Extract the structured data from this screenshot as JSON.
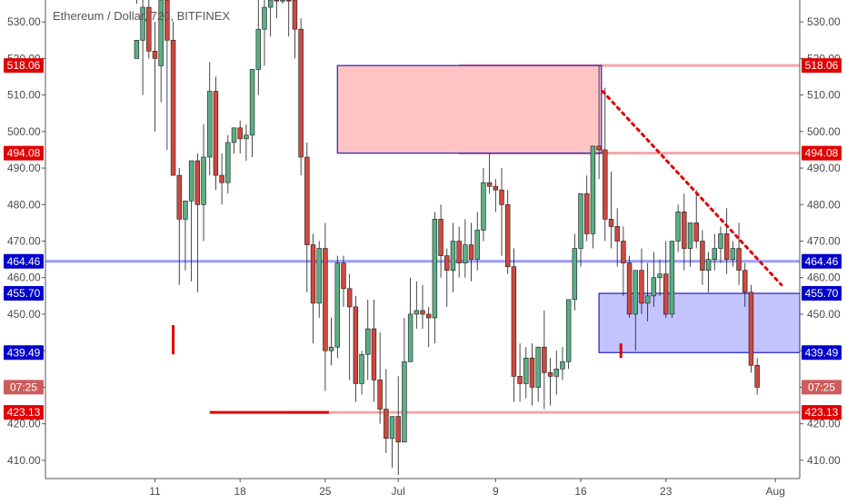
{
  "chart_data": {
    "type": "candlestick",
    "title": "Ethereum / Dollar, 720, BITFINEX",
    "y_ticks": [
      410,
      420,
      430,
      440,
      450,
      460,
      470,
      480,
      490,
      500,
      510,
      520,
      530
    ],
    "y_tick_labels": [
      "410.00",
      "420.00",
      "430.00",
      "440.00",
      "450.00",
      "460.00",
      "470.00",
      "480.00",
      "490.00",
      "500.00",
      "510.00",
      "520.00",
      "530.00"
    ],
    "ylim": [
      405,
      536
    ],
    "x_tick_labels": [
      "11",
      "18",
      "25",
      "Jul",
      "9",
      "16",
      "23",
      "Aug"
    ],
    "x_tick_days": [
      11,
      18,
      25,
      31,
      39,
      46,
      53,
      62
    ],
    "x_range_days": [
      2,
      64
    ],
    "candles": [
      [
        9.5,
        520,
        535,
        525,
        536
      ],
      [
        10,
        525,
        540,
        534,
        510
      ],
      [
        10.5,
        534,
        545,
        522,
        520
      ],
      [
        11,
        522,
        530,
        520,
        500
      ],
      [
        11.5,
        518,
        540,
        536,
        508
      ],
      [
        12,
        536,
        538,
        525,
        495
      ],
      [
        12.5,
        525,
        530,
        488,
        497
      ],
      [
        13,
        488,
        490,
        476,
        458
      ],
      [
        13.5,
        476,
        481,
        481,
        462
      ],
      [
        14,
        481,
        488,
        492,
        459
      ],
      [
        14.5,
        492,
        494,
        480,
        456
      ],
      [
        15,
        480,
        502,
        493,
        470
      ],
      [
        15.5,
        493,
        519,
        511,
        488
      ],
      [
        16,
        511,
        515,
        488,
        484
      ],
      [
        16.5,
        488,
        494,
        486,
        480
      ],
      [
        17,
        486,
        499,
        497,
        483
      ],
      [
        17.5,
        497,
        500,
        501,
        494
      ],
      [
        18,
        501,
        503,
        498,
        494
      ],
      [
        18.5,
        498,
        502,
        499,
        492
      ],
      [
        19,
        499,
        505,
        517,
        493
      ],
      [
        19.5,
        517,
        538,
        528,
        510
      ],
      [
        20,
        528,
        545,
        534,
        518
      ],
      [
        20.5,
        534,
        550,
        548,
        526
      ],
      [
        21,
        548,
        555,
        538,
        531
      ],
      [
        21.5,
        538,
        545,
        545,
        535
      ],
      [
        22,
        545,
        547,
        536,
        526
      ],
      [
        22.5,
        536,
        541,
        528,
        520
      ],
      [
        23,
        528,
        531,
        493,
        488
      ],
      [
        23.5,
        493,
        497,
        469,
        456
      ],
      [
        24,
        469,
        472,
        453,
        442
      ],
      [
        24.5,
        453,
        470,
        468,
        449
      ],
      [
        25,
        468,
        475,
        440,
        429
      ],
      [
        25.5,
        440,
        449,
        441,
        436
      ],
      [
        26,
        441,
        466,
        464,
        438
      ],
      [
        26.5,
        464,
        466,
        457,
        452
      ],
      [
        27,
        457,
        461,
        452,
        432
      ],
      [
        27.5,
        452,
        455,
        431,
        426
      ],
      [
        28,
        431,
        440,
        439,
        428
      ],
      [
        28.5,
        439,
        454,
        446,
        432
      ],
      [
        29,
        446,
        454,
        432,
        426
      ],
      [
        29.5,
        432,
        445,
        424,
        420
      ],
      [
        30,
        424,
        435,
        416,
        412
      ],
      [
        30.5,
        416,
        420,
        422,
        408
      ],
      [
        31,
        422,
        433,
        415,
        406
      ],
      [
        31.5,
        415,
        449,
        437,
        420
      ],
      [
        32,
        437,
        460,
        450,
        440
      ],
      [
        32.5,
        450,
        459,
        451,
        446
      ],
      [
        33,
        451,
        458,
        450,
        446
      ],
      [
        33.5,
        450,
        452,
        449,
        441
      ],
      [
        34,
        449,
        478,
        476,
        442
      ],
      [
        34.5,
        476,
        480,
        466,
        460
      ],
      [
        35,
        466,
        468,
        462,
        452
      ],
      [
        35.5,
        462,
        475,
        470,
        456
      ],
      [
        36,
        470,
        474,
        464,
        460
      ],
      [
        36.5,
        464,
        476,
        469,
        460
      ],
      [
        37,
        469,
        475,
        465,
        459
      ],
      [
        37.5,
        465,
        478,
        473,
        462
      ],
      [
        38,
        473,
        490,
        486,
        470
      ],
      [
        38.5,
        486,
        494,
        485,
        483
      ],
      [
        39,
        485,
        487,
        484,
        478
      ],
      [
        39.5,
        484,
        490,
        480,
        466
      ],
      [
        40,
        480,
        484,
        463,
        461
      ],
      [
        40.5,
        463,
        468,
        433,
        426
      ],
      [
        41,
        433,
        442,
        431,
        426
      ],
      [
        41.5,
        431,
        441,
        438,
        427
      ],
      [
        42,
        438,
        442,
        430,
        425
      ],
      [
        42.5,
        430,
        437,
        441,
        426
      ],
      [
        43,
        441,
        451,
        434,
        424
      ],
      [
        43.5,
        434,
        438,
        433,
        425
      ],
      [
        44,
        433,
        440,
        435,
        428
      ],
      [
        44.5,
        435,
        441,
        437,
        432
      ],
      [
        45,
        437,
        450,
        454,
        435
      ],
      [
        45.5,
        454,
        472,
        468,
        451
      ],
      [
        46,
        468,
        479,
        483,
        463
      ],
      [
        46.5,
        483,
        488,
        472,
        470
      ],
      [
        47,
        472,
        478,
        496,
        468
      ],
      [
        47.5,
        496,
        518,
        495,
        487
      ],
      [
        48,
        495,
        512,
        476,
        470
      ],
      [
        48.5,
        476,
        489,
        474,
        468
      ],
      [
        49,
        474,
        479,
        470,
        463
      ],
      [
        49.5,
        470,
        474,
        464,
        455
      ],
      [
        50,
        464,
        466,
        450,
        449
      ],
      [
        50.5,
        450,
        460,
        462,
        440
      ],
      [
        51,
        462,
        468,
        453,
        450
      ],
      [
        51.5,
        453,
        464,
        455,
        448
      ],
      [
        52,
        455,
        467,
        460,
        452
      ],
      [
        52.5,
        460,
        465,
        461,
        455
      ],
      [
        53,
        461,
        470,
        450,
        449
      ],
      [
        53.5,
        450,
        465,
        470,
        449
      ],
      [
        54,
        470,
        480,
        478,
        467
      ],
      [
        54.5,
        478,
        483,
        468,
        462
      ],
      [
        55,
        468,
        475,
        475,
        463
      ],
      [
        55.5,
        475,
        484,
        470,
        468
      ],
      [
        56,
        470,
        473,
        462,
        458
      ],
      [
        56.5,
        462,
        467,
        465,
        456
      ],
      [
        57,
        465,
        472,
        468,
        462
      ],
      [
        57.5,
        468,
        474,
        472,
        464
      ],
      [
        58,
        472,
        479,
        465,
        461
      ],
      [
        58.5,
        465,
        470,
        468,
        463
      ],
      [
        59,
        468,
        475,
        462,
        458
      ],
      [
        59.5,
        462,
        464,
        456,
        452
      ],
      [
        60,
        456,
        458,
        436,
        434
      ],
      [
        60.5,
        436,
        438,
        430,
        428
      ]
    ],
    "price_labels_right": [
      {
        "value": 518.06,
        "text": "518.06",
        "color": "#e00000"
      },
      {
        "value": 494.08,
        "text": "494.08",
        "color": "#e00000"
      },
      {
        "value": 464.46,
        "text": "464.46",
        "color": "#0000cc"
      },
      {
        "value": 455.7,
        "text": "455.70",
        "color": "#0000cc"
      },
      {
        "value": 439.49,
        "text": "439.49",
        "color": "#0000cc"
      },
      {
        "value": 423.13,
        "text": "423.13",
        "color": "#e00000"
      }
    ],
    "current_price_label": {
      "text": "07:25",
      "color": "#cd5c5c"
    },
    "horizontal_lines": [
      {
        "value": 464.46,
        "color": "#9c9cff"
      },
      {
        "value": 518.06,
        "color": "#f6a6a6",
        "from_day": 36
      },
      {
        "value": 494.08,
        "color": "#f6a6a6",
        "from_day": 36
      },
      {
        "value": 423.13,
        "color": "#f6a6a6",
        "from_day": 22
      }
    ],
    "zones": [
      {
        "x0_day": 26,
        "x1_day": 47.7,
        "y_low": 494.08,
        "y_high": 518.06,
        "fill": "#ffc0c0",
        "stroke": "#2020c0"
      },
      {
        "x0_day": 47.5,
        "x1_day": 64,
        "y_low": 439.49,
        "y_high": 455.7,
        "fill": "#c0c0ff",
        "stroke": "#2020c0"
      }
    ],
    "trendline": {
      "from": [
        47.8,
        511
      ],
      "to": [
        62.5,
        458
      ],
      "color": "#e00000"
    },
    "marks": [
      {
        "type": "vbar",
        "day": 12.5,
        "y0": 447,
        "y1": 439,
        "color": "#e00000"
      },
      {
        "type": "vbar",
        "day": 49.3,
        "y0": 442,
        "y1": 438,
        "color": "#e00000"
      },
      {
        "type": "hbar",
        "day0": 15.5,
        "day1": 25.3,
        "y": 423.13,
        "color": "#e00000"
      }
    ]
  }
}
